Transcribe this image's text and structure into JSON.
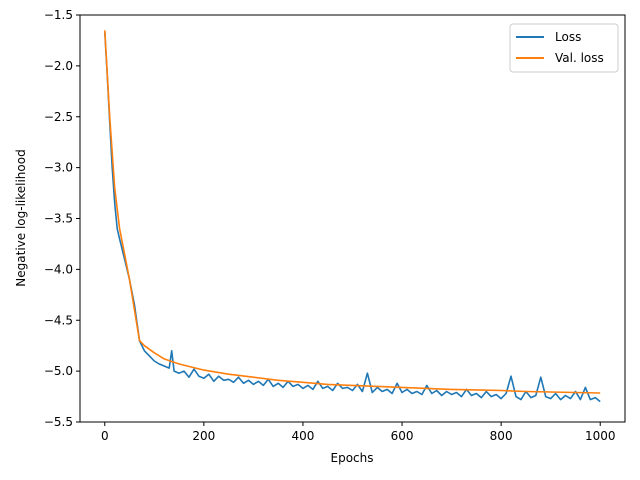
{
  "chart_data": {
    "type": "line",
    "title": "",
    "xlabel": "Epochs",
    "ylabel": "Negative log-likelihood",
    "xlim": [
      -50,
      1050
    ],
    "ylim": [
      -5.5,
      -1.5
    ],
    "xticks": [
      0,
      200,
      400,
      600,
      800,
      1000
    ],
    "yticks": [
      -1.5,
      -2.0,
      -2.5,
      -3.0,
      -3.5,
      -4.0,
      -4.5,
      -5.0,
      -5.5
    ],
    "xtick_labels": [
      "0",
      "200",
      "400",
      "600",
      "800",
      "1000"
    ],
    "ytick_labels": [
      "−1.5",
      "−2.0",
      "−2.5",
      "−3.0",
      "−3.5",
      "−4.0",
      "−4.5",
      "−5.0",
      "−5.5"
    ],
    "grid": false,
    "legend_position": "top-right",
    "series": [
      {
        "name": "Loss",
        "color": "#1f77b4",
        "x": [
          0,
          5,
          10,
          15,
          20,
          25,
          30,
          40,
          50,
          60,
          70,
          80,
          90,
          100,
          110,
          120,
          130,
          135,
          140,
          150,
          160,
          170,
          180,
          190,
          200,
          210,
          220,
          230,
          240,
          250,
          260,
          270,
          280,
          290,
          300,
          310,
          320,
          330,
          340,
          350,
          360,
          370,
          380,
          390,
          400,
          410,
          420,
          430,
          440,
          450,
          460,
          470,
          480,
          490,
          500,
          510,
          520,
          530,
          540,
          550,
          560,
          570,
          580,
          590,
          600,
          610,
          620,
          630,
          640,
          650,
          660,
          670,
          680,
          690,
          700,
          710,
          720,
          730,
          740,
          750,
          760,
          770,
          780,
          790,
          800,
          810,
          820,
          830,
          840,
          850,
          860,
          870,
          880,
          890,
          900,
          910,
          920,
          930,
          940,
          950,
          960,
          970,
          980,
          990,
          1000
        ],
        "values": [
          -1.67,
          -2.1,
          -2.55,
          -3.0,
          -3.35,
          -3.6,
          -3.7,
          -3.9,
          -4.1,
          -4.35,
          -4.7,
          -4.8,
          -4.85,
          -4.9,
          -4.93,
          -4.95,
          -4.97,
          -4.8,
          -5.0,
          -5.02,
          -5.0,
          -5.06,
          -4.98,
          -5.05,
          -5.07,
          -5.03,
          -5.1,
          -5.05,
          -5.09,
          -5.08,
          -5.11,
          -5.06,
          -5.12,
          -5.09,
          -5.13,
          -5.1,
          -5.14,
          -5.08,
          -5.15,
          -5.12,
          -5.16,
          -5.1,
          -5.15,
          -5.13,
          -5.17,
          -5.14,
          -5.18,
          -5.1,
          -5.17,
          -5.15,
          -5.19,
          -5.12,
          -5.17,
          -5.16,
          -5.19,
          -5.13,
          -5.2,
          -5.02,
          -5.21,
          -5.16,
          -5.2,
          -5.18,
          -5.22,
          -5.12,
          -5.21,
          -5.18,
          -5.22,
          -5.2,
          -5.23,
          -5.14,
          -5.22,
          -5.19,
          -5.24,
          -5.2,
          -5.23,
          -5.21,
          -5.25,
          -5.18,
          -5.24,
          -5.22,
          -5.26,
          -5.2,
          -5.25,
          -5.23,
          -5.27,
          -5.22,
          -5.05,
          -5.25,
          -5.28,
          -5.2,
          -5.26,
          -5.24,
          -5.06,
          -5.25,
          -5.27,
          -5.22,
          -5.28,
          -5.24,
          -5.27,
          -5.2,
          -5.28,
          -5.16,
          -5.28,
          -5.26,
          -5.3
        ]
      },
      {
        "name": "Val. loss",
        "color": "#ff7f0e",
        "x": [
          0,
          10,
          20,
          30,
          40,
          50,
          60,
          70,
          80,
          100,
          120,
          150,
          200,
          250,
          300,
          350,
          400,
          450,
          500,
          550,
          600,
          650,
          700,
          750,
          800,
          850,
          900,
          950,
          1000
        ],
        "values": [
          -1.65,
          -2.5,
          -3.2,
          -3.6,
          -3.85,
          -4.1,
          -4.4,
          -4.7,
          -4.75,
          -4.82,
          -4.88,
          -4.93,
          -4.99,
          -5.03,
          -5.06,
          -5.09,
          -5.11,
          -5.13,
          -5.14,
          -5.15,
          -5.16,
          -5.17,
          -5.18,
          -5.185,
          -5.19,
          -5.2,
          -5.205,
          -5.21,
          -5.215
        ]
      }
    ]
  }
}
